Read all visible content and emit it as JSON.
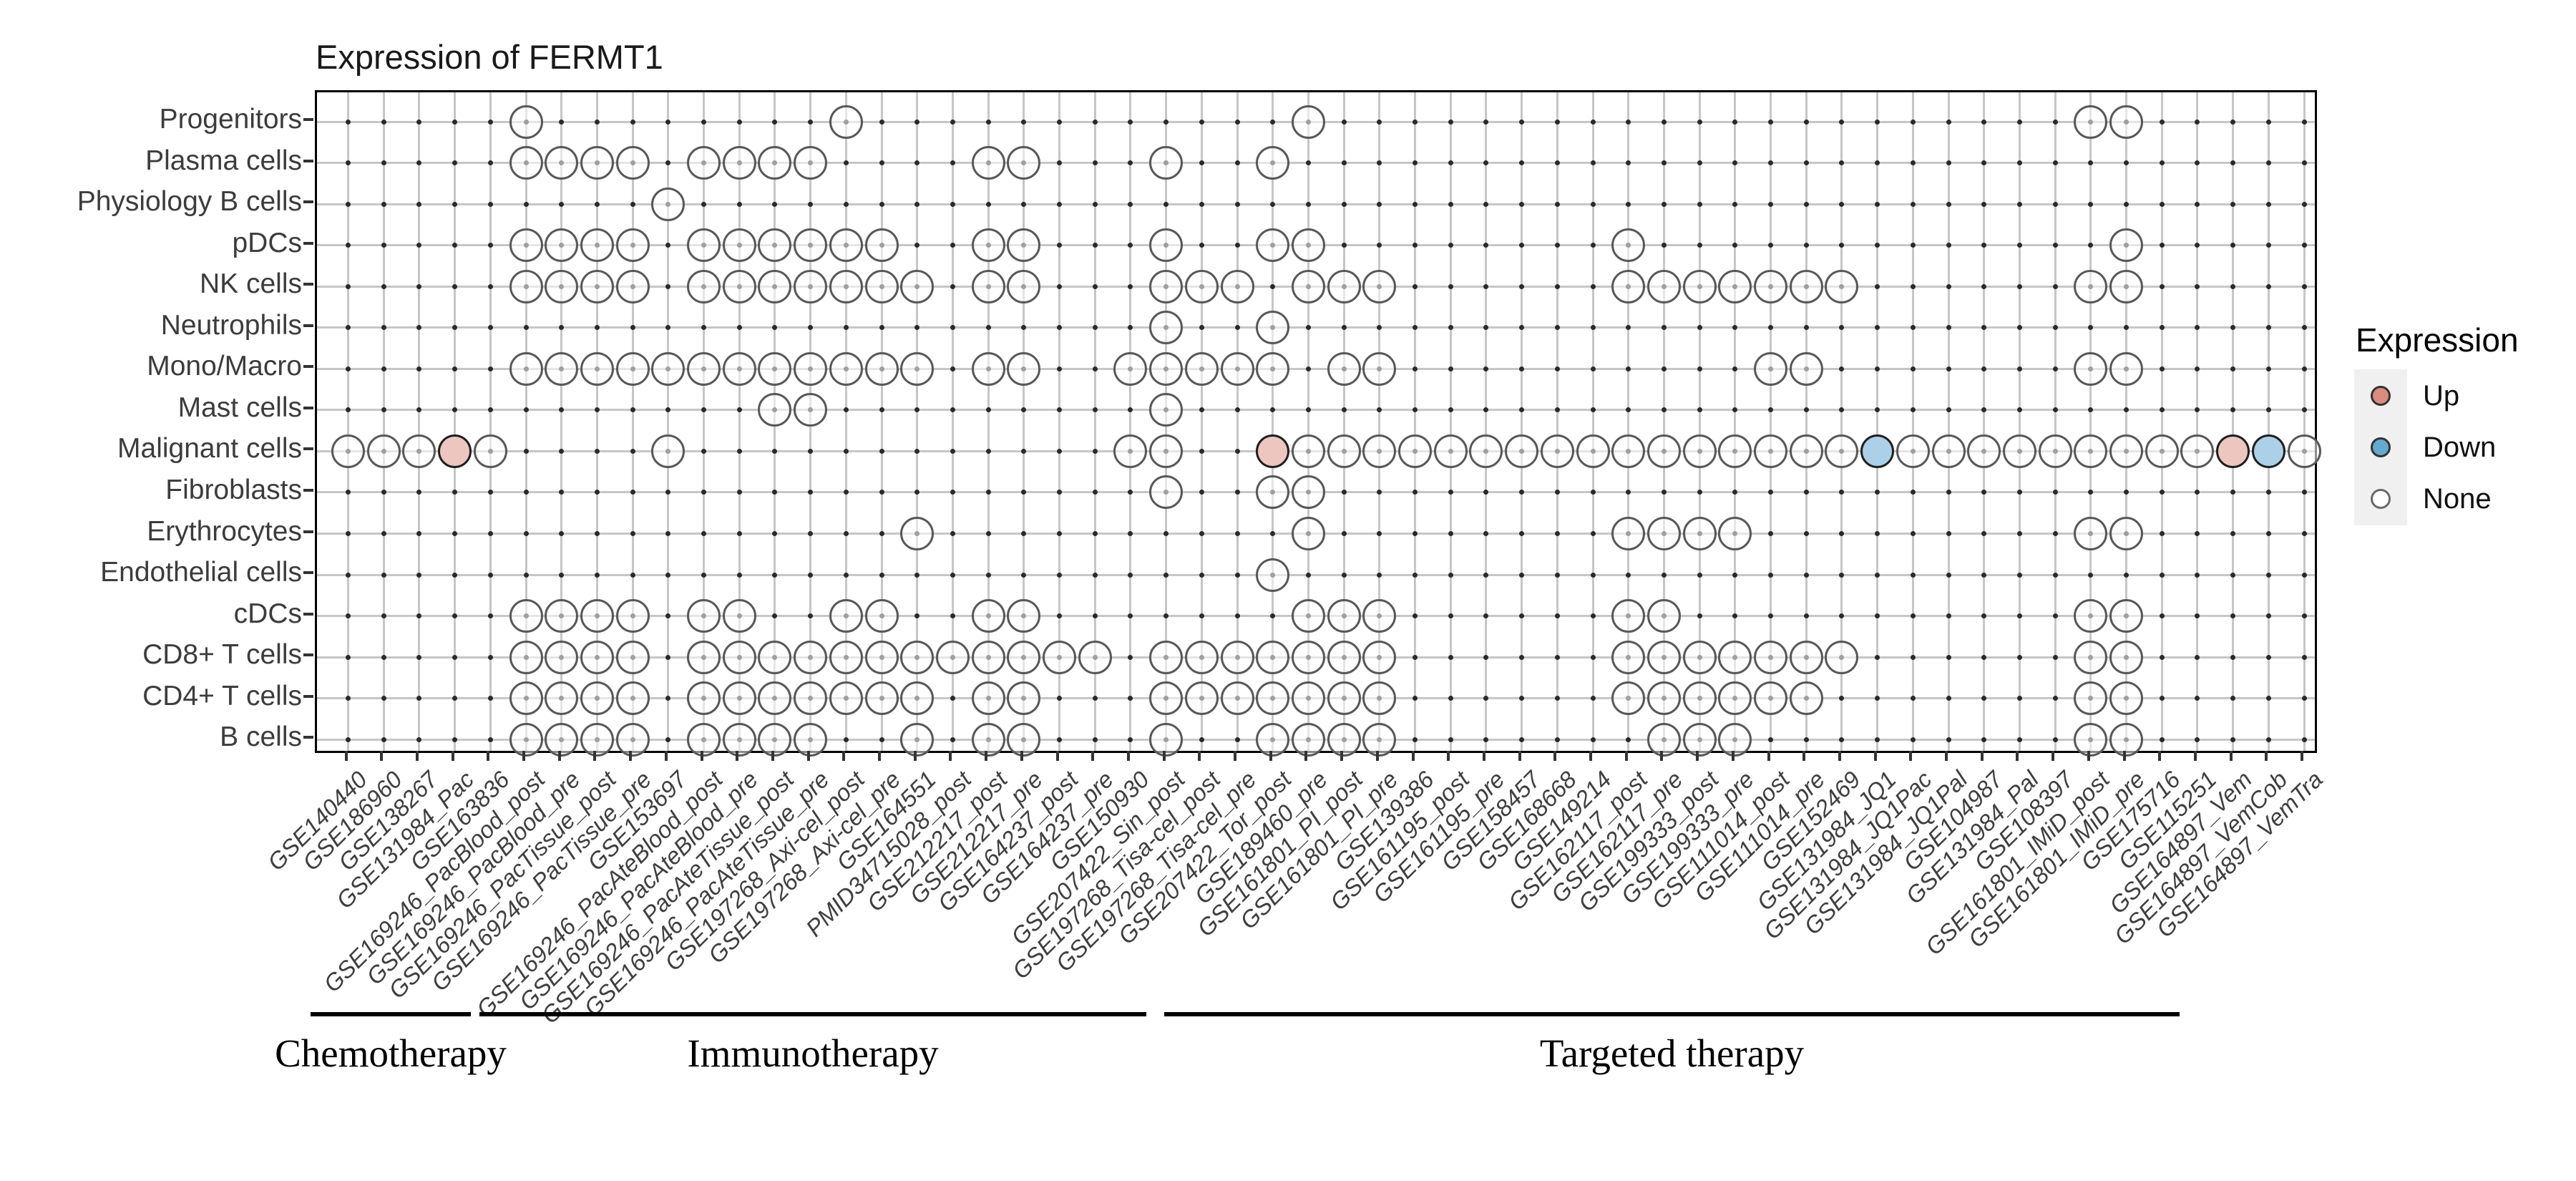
{
  "chart_data": {
    "type": "scatter",
    "title": "Expression of FERMT1",
    "xlabel": "",
    "ylabel": "",
    "grid": true,
    "legend": {
      "title": "Expression",
      "entries": [
        "Up",
        "Down",
        "None"
      ],
      "position": "right"
    },
    "x_categories": [
      "GSE140440",
      "GSE186960",
      "GSE138267",
      "GSE131984_Pac",
      "GSE163836",
      "GSE169246_PacBlood_post",
      "GSE169246_PacBlood_pre",
      "GSE169246_PacTissue_post",
      "GSE169246_PacTissue_pre",
      "GSE153697",
      "GSE169246_PacAteBlood_post",
      "GSE169246_PacAteBlood_pre",
      "GSE169246_PacAteTissue_post",
      "GSE169246_PacAteTissue_pre",
      "GSE197268_Axi-cel_post",
      "GSE197268_Axi-cel_pre",
      "GSE164551",
      "PMID34715028_post",
      "GSE212217_post",
      "GSE212217_pre",
      "GSE164237_post",
      "GSE164237_pre",
      "GSE150930",
      "GSE207422_Sin_post",
      "GSE197268_Tisa-cel_post",
      "GSE197268_Tisa-cel_pre",
      "GSE207422_Tor_post",
      "GSE189460_pre",
      "GSE161801_PI_post",
      "GSE161801_PI_pre",
      "GSE139386",
      "GSE161195_post",
      "GSE161195_pre",
      "GSE158457",
      "GSE168668",
      "GSE149214",
      "GSE162117_post",
      "GSE162117_pre",
      "GSE199333_post",
      "GSE199333_pre",
      "GSE111014_post",
      "GSE111014_pre",
      "GSE152469",
      "GSE131984_JQ1",
      "GSE131984_JQ1Pac",
      "GSE131984_JQ1Pal",
      "GSE104987",
      "GSE131984_Pal",
      "GSE108397",
      "GSE161801_IMiD_post",
      "GSE161801_IMiD_pre",
      "GSE175716",
      "GSE115251",
      "GSE164897_Vem",
      "GSE164897_VemCob",
      "GSE164897_VemTra"
    ],
    "y_categories": [
      "Progenitors",
      "Plasma cells",
      "Physiology B cells",
      "pDCs",
      "NK cells",
      "Neutrophils",
      "Mono/Macro",
      "Mast cells",
      "Malignant cells",
      "Fibroblasts",
      "Erythrocytes",
      "Endothelial cells",
      "cDCs",
      "CD8+ T cells",
      "CD4+ T cells",
      "B cells"
    ],
    "x_groups": [
      {
        "label": "Chemotherapy",
        "from_index": 1,
        "to_index": 4
      },
      {
        "label": "Immunotherapy",
        "from_index": 5,
        "to_index": 23
      },
      {
        "label": "Targeted therapy",
        "from_index": 24,
        "to_index": 52
      }
    ],
    "series": [
      {
        "label": "Progenitors",
        "cols": [
          6,
          15,
          28,
          50,
          51
        ]
      },
      {
        "label": "Plasma cells",
        "cols": [
          6,
          7,
          8,
          9,
          11,
          12,
          13,
          14,
          19,
          20,
          24,
          27
        ]
      },
      {
        "label": "Physiology B cells",
        "cols": [
          10
        ]
      },
      {
        "label": "pDCs",
        "cols": [
          6,
          7,
          8,
          9,
          11,
          12,
          13,
          14,
          15,
          16,
          19,
          20,
          24,
          27,
          28,
          37,
          51
        ]
      },
      {
        "label": "NK cells",
        "cols": [
          6,
          7,
          8,
          9,
          11,
          12,
          13,
          14,
          15,
          16,
          17,
          19,
          20,
          24,
          25,
          26,
          28,
          29,
          30,
          37,
          38,
          39,
          40,
          41,
          42,
          43,
          50,
          51
        ]
      },
      {
        "label": "Neutrophils",
        "cols": [
          24,
          27
        ]
      },
      {
        "label": "Mono/Macro",
        "cols": [
          6,
          7,
          8,
          9,
          10,
          11,
          12,
          13,
          14,
          15,
          16,
          17,
          19,
          20,
          23,
          24,
          25,
          26,
          27,
          29,
          30,
          41,
          42,
          50,
          51
        ]
      },
      {
        "label": "Mast cells",
        "cols": [
          13,
          14,
          24
        ]
      },
      {
        "label": "Malignant cells",
        "cols": [
          1,
          2,
          3,
          {
            "i": 4,
            "e": "Up"
          },
          5,
          10,
          23,
          24,
          {
            "i": 27,
            "e": "Up"
          },
          28,
          29,
          30,
          31,
          32,
          33,
          34,
          35,
          36,
          37,
          38,
          39,
          40,
          41,
          42,
          43,
          {
            "i": 44,
            "e": "Down"
          },
          45,
          46,
          47,
          48,
          49,
          50,
          51,
          52,
          53,
          {
            "i": 54,
            "e": "Up"
          },
          {
            "i": 55,
            "e": "Down"
          },
          56
        ]
      },
      {
        "label": "Fibroblasts",
        "cols": [
          24,
          27,
          28
        ]
      },
      {
        "label": "Erythrocytes",
        "cols": [
          17,
          28,
          37,
          38,
          39,
          40,
          50,
          51
        ]
      },
      {
        "label": "Endothelial cells",
        "cols": [
          27
        ]
      },
      {
        "label": "cDCs",
        "cols": [
          6,
          7,
          8,
          9,
          11,
          12,
          15,
          16,
          19,
          20,
          28,
          29,
          30,
          37,
          38,
          50,
          51
        ]
      },
      {
        "label": "CD8+ T cells",
        "cols": [
          6,
          7,
          8,
          9,
          11,
          12,
          13,
          14,
          15,
          16,
          17,
          18,
          19,
          20,
          21,
          22,
          24,
          25,
          26,
          27,
          28,
          29,
          30,
          37,
          38,
          39,
          40,
          41,
          42,
          43,
          50,
          51
        ]
      },
      {
        "label": "CD4+ T cells",
        "cols": [
          6,
          7,
          8,
          9,
          11,
          12,
          13,
          14,
          15,
          16,
          17,
          19,
          20,
          24,
          25,
          26,
          27,
          28,
          29,
          30,
          37,
          38,
          39,
          40,
          41,
          42,
          50,
          51
        ]
      },
      {
        "label": "B cells",
        "cols": [
          6,
          7,
          8,
          9,
          11,
          12,
          13,
          14,
          17,
          19,
          20,
          24,
          27,
          28,
          29,
          30,
          38,
          39,
          40,
          50,
          51
        ]
      }
    ]
  },
  "style_colors": {
    "plot_up_fill": "#EDC6C0",
    "plot_down_fill": "#ACD0E8",
    "plot_none_fill": "rgba(255,255,255,0.55)",
    "legend_up_fill": "#DB8C80",
    "legend_down_fill": "#64A9CF",
    "legend_none_fill": "#FFFFFF"
  }
}
